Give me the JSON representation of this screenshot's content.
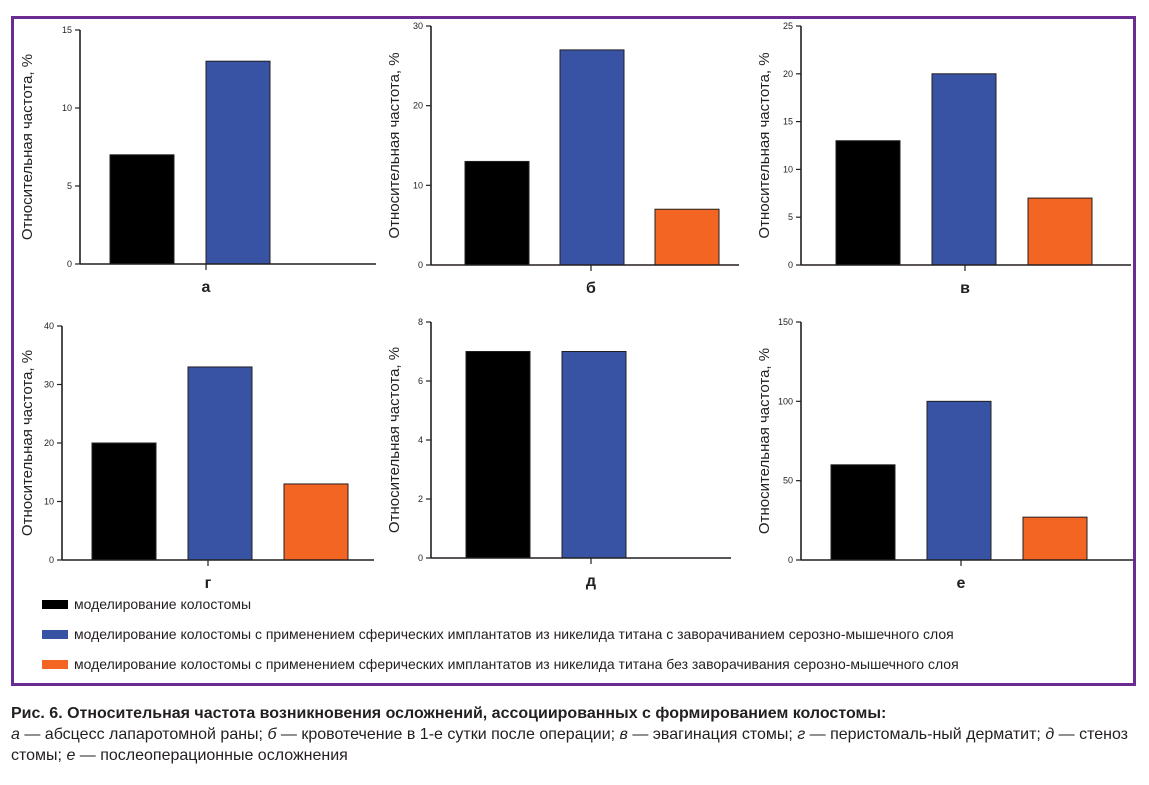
{
  "colors": {
    "black": "#000000",
    "blue": "#3853a4",
    "orange": "#f26522",
    "border": "#6b2c91"
  },
  "legend": [
    {
      "label": "моделирование колостомы",
      "color": "#000000"
    },
    {
      "label": "моделирование колостомы с применением сферических имплантатов из никелида титана с заворачиванием серозно-мышечного слоя",
      "color": "#3853a4"
    },
    {
      "label": "моделирование колостомы с применением сферических имплантатов из никелида титана без заворачивания серозно-мышечного слоя",
      "color": "#f26522"
    }
  ],
  "chart_data": [
    {
      "type": "bar",
      "letter": "а",
      "ylabel": "Относительная частота, %",
      "ylim": [
        0,
        15
      ],
      "ticks": [
        0,
        5,
        10,
        15
      ],
      "values": [
        7,
        13
      ],
      "colors": [
        "#000000",
        "#3853a4"
      ]
    },
    {
      "type": "bar",
      "letter": "б",
      "ylabel": "Относительная частота, %",
      "ylim": [
        0,
        30
      ],
      "ticks": [
        0,
        10,
        20,
        30
      ],
      "values": [
        13,
        27,
        7
      ],
      "colors": [
        "#000000",
        "#3853a4",
        "#f26522"
      ]
    },
    {
      "type": "bar",
      "letter": "в",
      "ylabel": "Относительная частота, %",
      "ylim": [
        0,
        25
      ],
      "ticks": [
        0,
        5,
        10,
        15,
        20,
        25
      ],
      "values": [
        13,
        20,
        7
      ],
      "colors": [
        "#000000",
        "#3853a4",
        "#f26522"
      ]
    },
    {
      "type": "bar",
      "letter": "г",
      "ylabel": "Относительная частота, %",
      "ylim": [
        0,
        40
      ],
      "ticks": [
        0,
        10,
        20,
        30,
        40
      ],
      "values": [
        20,
        33,
        13
      ],
      "colors": [
        "#000000",
        "#3853a4",
        "#f26522"
      ]
    },
    {
      "type": "bar",
      "letter": "д",
      "ylabel": "Относительная частота, %",
      "ylim": [
        0,
        8
      ],
      "ticks": [
        0,
        2,
        4,
        6,
        8
      ],
      "values": [
        7,
        7
      ],
      "colors": [
        "#000000",
        "#3853a4"
      ]
    },
    {
      "type": "bar",
      "letter": "е",
      "ylabel": "Относительная частота, %",
      "ylim": [
        0,
        150
      ],
      "ticks": [
        0,
        50,
        100,
        150
      ],
      "values": [
        60,
        100,
        27
      ],
      "colors": [
        "#000000",
        "#3853a4",
        "#f26522"
      ]
    }
  ],
  "caption": {
    "title": "Рис. 6. Относительная частота возникновения осложнений, ассоциированных с формированием колостомы:",
    "items": [
      {
        "letter": "а",
        "text": " — абсцесс лапаротомной раны; "
      },
      {
        "letter": "б",
        "text": " — кровотечение в 1-е сутки после операции; "
      },
      {
        "letter": "в",
        "text": " — эвагинация стомы; "
      },
      {
        "letter": "г",
        "text": " — перистомаль-ный дерматит; "
      },
      {
        "letter": "д",
        "text": " — стеноз стомы; "
      },
      {
        "letter": "е",
        "text": " — послеоперационные осложнения"
      }
    ]
  }
}
